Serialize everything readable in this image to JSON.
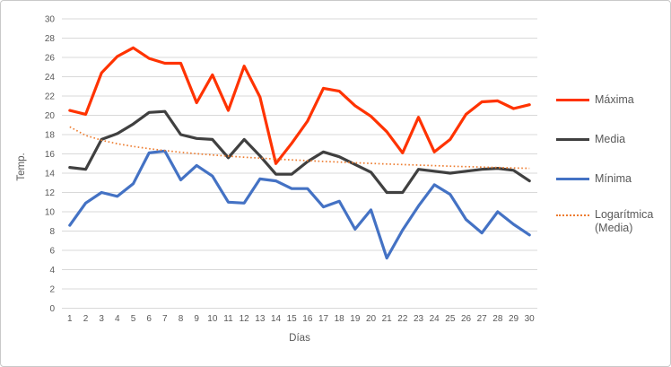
{
  "chart_data": {
    "type": "line",
    "title": "",
    "xlabel": "Días",
    "ylabel": "Temp.",
    "x": [
      1,
      2,
      3,
      4,
      5,
      6,
      7,
      8,
      9,
      10,
      11,
      12,
      13,
      14,
      15,
      16,
      17,
      18,
      19,
      20,
      21,
      22,
      23,
      24,
      25,
      26,
      27,
      28,
      29,
      30
    ],
    "ylim": [
      0,
      30
    ],
    "y_ticks": [
      0,
      2,
      4,
      6,
      8,
      10,
      12,
      14,
      16,
      18,
      20,
      22,
      24,
      26,
      28,
      30
    ],
    "grid": true,
    "legend_position": "right",
    "series": [
      {
        "id": "maxima",
        "name": "Máxima",
        "color": "#ff3300",
        "style": "solid",
        "values": [
          20.5,
          20.1,
          24.4,
          26.1,
          27.0,
          25.9,
          25.4,
          25.4,
          21.3,
          24.2,
          20.5,
          25.1,
          21.9,
          15.0,
          17.1,
          19.4,
          22.8,
          22.5,
          21.0,
          19.9,
          18.3,
          16.1,
          19.8,
          16.2,
          17.5,
          20.1,
          21.4,
          21.5,
          20.7,
          21.1
        ]
      },
      {
        "id": "media",
        "name": "Media",
        "color": "#404040",
        "style": "solid",
        "values": [
          14.6,
          14.4,
          17.5,
          18.1,
          19.1,
          20.3,
          20.4,
          18.0,
          17.6,
          17.5,
          15.6,
          17.5,
          15.8,
          13.9,
          13.9,
          15.2,
          16.2,
          15.7,
          14.9,
          14.1,
          12.0,
          12.0,
          14.4,
          14.2,
          14.0,
          14.2,
          14.4,
          14.5,
          14.3,
          13.2
        ]
      },
      {
        "id": "minima",
        "name": "Mínima",
        "color": "#4472c4",
        "style": "solid",
        "values": [
          8.6,
          10.9,
          12.0,
          11.6,
          12.9,
          16.1,
          16.3,
          13.3,
          14.8,
          13.7,
          11.0,
          10.9,
          13.4,
          13.2,
          12.4,
          12.4,
          10.5,
          11.1,
          8.2,
          10.2,
          5.2,
          8.1,
          10.6,
          12.8,
          11.8,
          9.2,
          7.8,
          10.0,
          8.7,
          7.6
        ]
      },
      {
        "id": "logaritmica-media",
        "name": "Logarítmica (Media)",
        "color": "#ed7d31",
        "style": "dotted",
        "values": [
          18.8,
          17.92,
          17.41,
          17.05,
          16.77,
          16.54,
          16.34,
          16.17,
          16.02,
          15.89,
          15.77,
          15.66,
          15.56,
          15.46,
          15.38,
          15.3,
          15.22,
          15.15,
          15.08,
          15.01,
          14.95,
          14.89,
          14.84,
          14.78,
          14.73,
          14.68,
          14.63,
          14.59,
          14.54,
          14.5
        ]
      }
    ]
  },
  "axes": {
    "y_title": "Temp.",
    "x_title": "Días"
  },
  "legend": {
    "items": [
      {
        "label": "Máxima"
      },
      {
        "label": "Media"
      },
      {
        "label": "Mínima"
      },
      {
        "label": "Logarítmica\n(Media)"
      }
    ]
  },
  "colors": {
    "maxima": "#ff3300",
    "media": "#404040",
    "minima": "#4472c4",
    "trendline": "#ed7d31",
    "gridline": "#d9d9d9",
    "tick_text": "#595959",
    "frame_border": "#c9c9c9"
  }
}
